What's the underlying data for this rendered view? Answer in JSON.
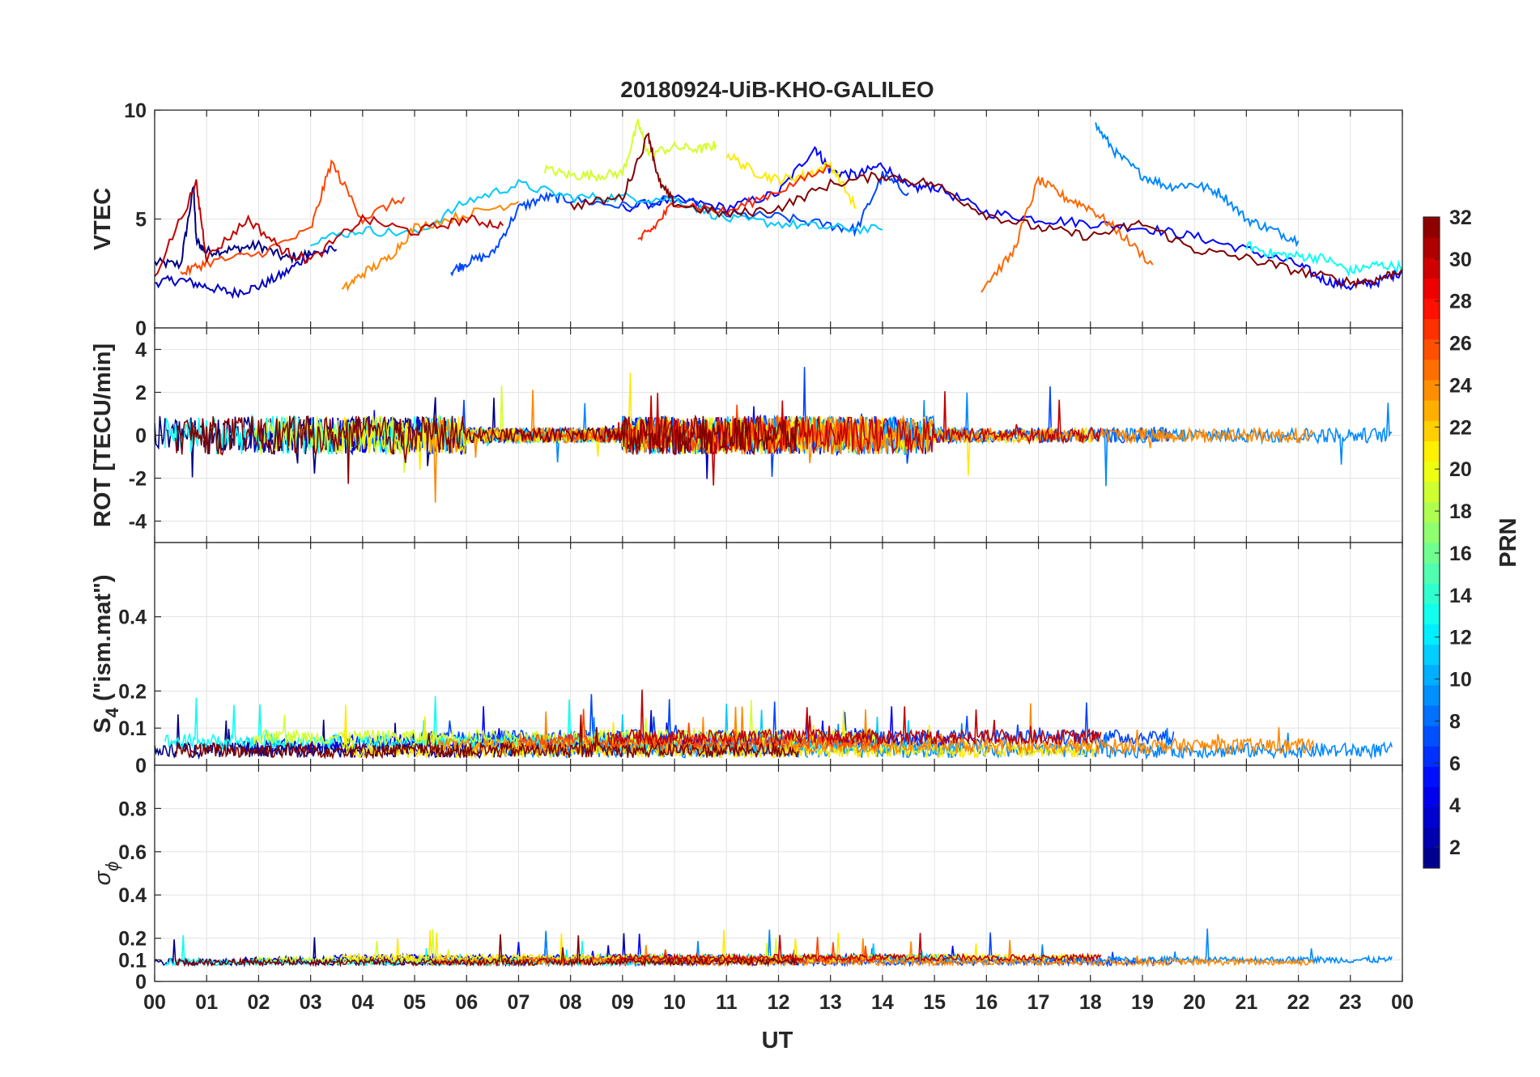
{
  "chart_data": {
    "type": "line",
    "title": "20180924-UiB-KHO-GALILEO",
    "xlabel": "UT",
    "x_ticks": [
      "00",
      "01",
      "02",
      "03",
      "04",
      "05",
      "06",
      "07",
      "08",
      "09",
      "10",
      "11",
      "12",
      "13",
      "14",
      "15",
      "16",
      "17",
      "18",
      "19",
      "20",
      "21",
      "22",
      "23",
      "00"
    ],
    "xlim": [
      0,
      24
    ],
    "grid": true,
    "colorbar": {
      "label": "PRN",
      "range": [
        1,
        32
      ],
      "ticks": [
        "2",
        "4",
        "6",
        "8",
        "10",
        "12",
        "14",
        "16",
        "18",
        "20",
        "22",
        "24",
        "26",
        "28",
        "30",
        "32"
      ],
      "colormap": "jet"
    },
    "panels": [
      {
        "ylabel": "VTEC",
        "ylim": [
          0,
          10
        ],
        "y_ticks": [
          "0",
          "5",
          "10"
        ],
        "series": [
          {
            "prn": 1,
            "x": [
              0,
              0.5,
              0.75,
              0.8,
              1,
              1.5,
              2,
              2.5,
              3
            ],
            "y": [
              3,
              2.9,
              6.5,
              4,
              3.5,
              3.6,
              3.8,
              3.2,
              3.4
            ]
          },
          {
            "prn": 3,
            "x": [
              0,
              0.5,
              1,
              1.5,
              2,
              2.5,
              3,
              3.5
            ],
            "y": [
              2.1,
              2.2,
              1.9,
              1.6,
              1.9,
              2.5,
              3.4,
              3.6
            ]
          },
          {
            "prn": 5,
            "x": [
              9,
              10,
              11,
              12,
              12.7,
              13,
              13.5,
              14,
              14.5,
              15,
              16,
              17,
              18,
              19,
              20,
              21,
              22,
              22.5,
              23,
              23.5,
              24
            ],
            "y": [
              5.5,
              5.9,
              5.5,
              6.2,
              8.3,
              7.2,
              7,
              7.5,
              6.4,
              6.5,
              5.3,
              5,
              4.8,
              4.6,
              4.2,
              3.6,
              2.9,
              2.2,
              1.9,
              2.1,
              2.6
            ]
          },
          {
            "prn": 7,
            "x": [
              5.7,
              6,
              6.5,
              7,
              7.5,
              8,
              9,
              10,
              11,
              12,
              13,
              13.5,
              14,
              14.5
            ],
            "y": [
              2.6,
              3,
              3.4,
              5.5,
              6,
              5.9,
              5.6,
              5.9,
              5.2,
              5.1,
              4.7,
              4.5,
              7,
              6.2
            ]
          },
          {
            "prn": 9,
            "x": [
              18.1,
              18.5,
              19,
              19.5,
              20,
              20.5,
              21,
              21.5,
              22
            ],
            "y": [
              9.3,
              8,
              7,
              6.5,
              6.6,
              6.2,
              5,
              4.5,
              4
            ]
          },
          {
            "prn": 11,
            "x": [
              3,
              4,
              5,
              6,
              7,
              8,
              9,
              10,
              11,
              12,
              13,
              14
            ],
            "y": [
              4,
              4.5,
              4.3,
              5.8,
              6.6,
              6,
              6,
              5.9,
              5,
              4.8,
              4.6,
              4.5
            ]
          },
          {
            "prn": 13,
            "x": [
              21,
              21.5,
              22,
              22.5,
              23,
              23.5,
              24
            ],
            "y": [
              3.8,
              3.4,
              3.3,
              3.2,
              2.6,
              2.9,
              2.8
            ]
          },
          {
            "prn": 19,
            "x": [
              7.5,
              8,
              8.5,
              9,
              9.3,
              9.5,
              10,
              10.5,
              10.8
            ],
            "y": [
              7.3,
              7,
              7,
              7.1,
              9.4,
              8,
              8.3,
              8.2,
              8.4
            ]
          },
          {
            "prn": 21,
            "x": [
              11,
              11.5,
              12,
              12.5,
              13,
              13.5
            ],
            "y": [
              8,
              7.2,
              6.8,
              7,
              7.5,
              5.5
            ]
          },
          {
            "prn": 24,
            "x": [
              3.6,
              4,
              4.5,
              5,
              6,
              7
            ],
            "y": [
              1.7,
              2.5,
              3.2,
              4.6,
              5.2,
              5.8
            ]
          },
          {
            "prn": 25,
            "x": [
              15.9,
              16.5,
              17,
              17.5,
              18,
              18.5,
              19.2
            ],
            "y": [
              1.8,
              3.4,
              6.8,
              6,
              5.5,
              4.5,
              2.9
            ]
          },
          {
            "prn": 26,
            "x": [
              0.5,
              1,
              2,
              3,
              3.4,
              4,
              4.8
            ],
            "y": [
              2.5,
              3,
              3.4,
              4.5,
              7.6,
              5,
              6
            ]
          },
          {
            "prn": 27,
            "x": [
              9.3,
              9.6,
              10,
              11,
              12,
              13
            ],
            "y": [
              4,
              4.6,
              5.8,
              5.3,
              6.3,
              7.4
            ]
          },
          {
            "prn": 30,
            "x": [
              0,
              0.8,
              1,
              1.8,
              2.5,
              3,
              4,
              5,
              6,
              6.7
            ],
            "y": [
              2.4,
              6.6,
              3.2,
              5,
              3.5,
              3.1,
              5,
              4.4,
              5,
              4.7
            ]
          },
          {
            "prn": 32,
            "x": [
              8,
              9,
              9.5,
              9.7,
              10,
              11,
              12,
              13,
              14,
              15,
              16,
              17,
              18,
              19,
              20,
              21,
              22,
              23,
              23.5,
              24
            ],
            "y": [
              5.6,
              6,
              8.9,
              6.7,
              5.7,
              5.2,
              5.5,
              6.6,
              7,
              6.6,
              5.2,
              4.6,
              4.2,
              4.8,
              3.6,
              3.2,
              2.6,
              2.1,
              2.2,
              2.7
            ]
          }
        ]
      },
      {
        "ylabel": "ROT [TECU/min]",
        "ylim": [
          -5,
          5
        ],
        "y_ticks": [
          "-4",
          "-2",
          "0",
          "2",
          "4"
        ]
      },
      {
        "ylabel": "S",
        "ylabel_sub": "4",
        "ylabel_suffix": " (\"ism.mat\")",
        "ylim": [
          0,
          0.6
        ],
        "y_ticks": [
          "0",
          "0.1",
          "0.2",
          "0.4"
        ]
      },
      {
        "ylabel": "σ",
        "ylabel_sub": "ϕ",
        "ylim": [
          0,
          1
        ],
        "y_ticks": [
          "0",
          "0.1",
          "0.2",
          "0.4",
          "0.6",
          "0.8"
        ]
      }
    ]
  }
}
